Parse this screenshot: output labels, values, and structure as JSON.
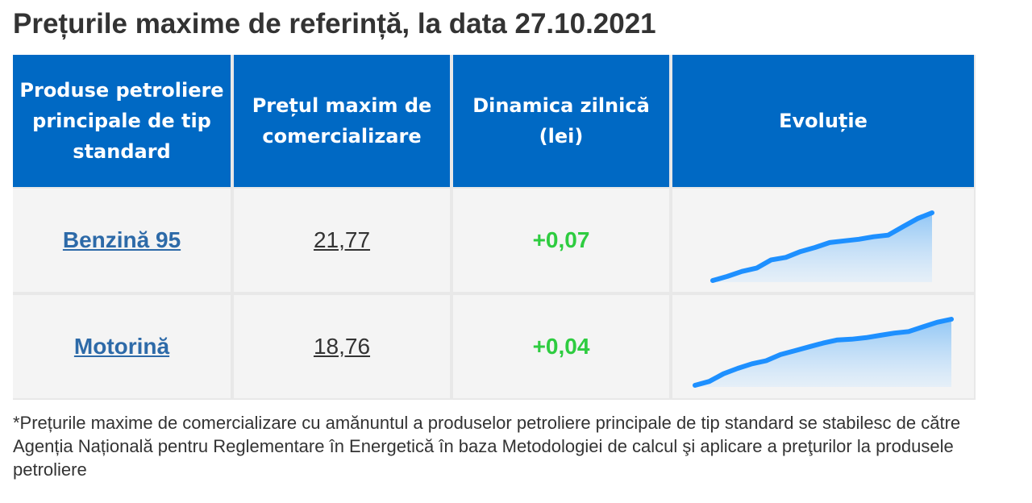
{
  "page": {
    "title": "Prețurile maxime de referință, la data 27.10.2021"
  },
  "table": {
    "headers": [
      "Produse petroliere principale de tip standard",
      "Prețul maxim de comercializare",
      "Dinamica zilnică (lei)",
      "Evoluție"
    ],
    "rows": [
      {
        "product": "Benzină 95",
        "price": "21,77",
        "change": "+0,07",
        "trend": [
          20.95,
          21.0,
          21.06,
          21.1,
          21.2,
          21.23,
          21.3,
          21.35,
          21.41,
          21.43,
          21.45,
          21.48,
          21.5,
          21.6,
          21.7,
          21.77
        ]
      },
      {
        "product": "Motorină",
        "price": "18,76",
        "change": "+0,04",
        "trend": [
          17.9,
          17.95,
          18.05,
          18.12,
          18.18,
          18.22,
          18.3,
          18.35,
          18.4,
          18.45,
          18.49,
          18.5,
          18.52,
          18.55,
          18.58,
          18.6,
          18.66,
          18.72,
          18.76
        ]
      }
    ]
  },
  "colors": {
    "header_bg": "#0069c4",
    "link": "#2d6aa8",
    "positive_change": "#2ecc40",
    "sparkline_stroke": "#1e90ff"
  },
  "footnote": "*Prețurile maxime de comercializare cu amănuntul a produselor petroliere principale de tip standard se stabilesc de către Agenția Națională pentru Reglementare în Energetică în baza Metodologiei de calcul şi aplicare a preţurilor la produsele petroliere"
}
